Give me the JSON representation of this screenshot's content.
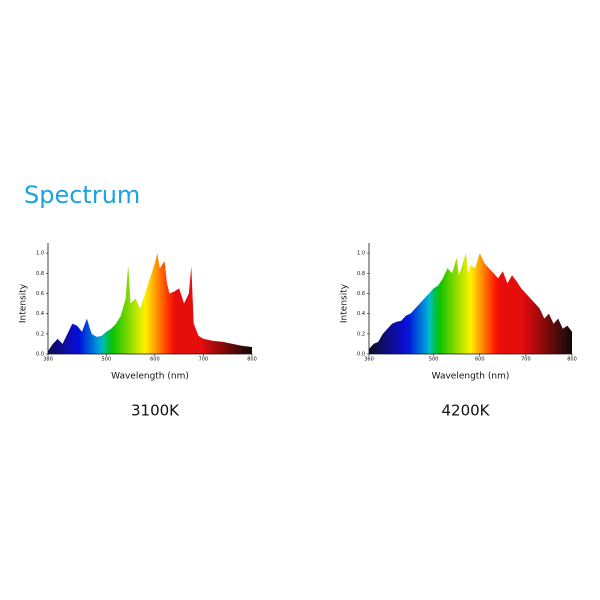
{
  "header": {
    "title": "Spectrum"
  },
  "chart_data": [
    {
      "type": "area",
      "ylabel": "Intensity",
      "xlabel": "Wavelength (nm)",
      "caption": "3100K",
      "xlim": [
        380,
        800
      ],
      "xticks": [
        380,
        500,
        600,
        700,
        800
      ],
      "ylim": [
        0,
        1.1
      ],
      "yticks": [
        {
          "value": 0,
          "label": "0.0"
        },
        0.2,
        0.4,
        0.6,
        0.8,
        {
          "value": 1,
          "label": "1.0"
        }
      ],
      "x": [
        380,
        390,
        400,
        410,
        420,
        430,
        440,
        450,
        460,
        470,
        480,
        490,
        500,
        510,
        520,
        530,
        540,
        545,
        550,
        560,
        570,
        580,
        590,
        600,
        605,
        610,
        620,
        625,
        630,
        640,
        650,
        660,
        670,
        675,
        680,
        690,
        700,
        720,
        740,
        760,
        780,
        800
      ],
      "values": [
        0.03,
        0.1,
        0.15,
        0.1,
        0.2,
        0.3,
        0.28,
        0.22,
        0.35,
        0.2,
        0.17,
        0.18,
        0.22,
        0.25,
        0.3,
        0.38,
        0.55,
        0.88,
        0.5,
        0.55,
        0.45,
        0.6,
        0.75,
        0.9,
        1.0,
        0.85,
        0.92,
        0.7,
        0.6,
        0.62,
        0.65,
        0.5,
        0.6,
        0.87,
        0.3,
        0.18,
        0.15,
        0.13,
        0.12,
        0.1,
        0.08,
        0.07
      ]
    },
    {
      "type": "area",
      "ylabel": "Intensity",
      "xlabel": "Wavelength (nm)",
      "caption": "4200K",
      "xlim": [
        360,
        800
      ],
      "xticks": [
        360,
        500,
        600,
        700,
        800
      ],
      "ylim": [
        0,
        1.1
      ],
      "yticks": [
        {
          "value": 0,
          "label": "0.0"
        },
        0.2,
        0.4,
        0.6,
        0.8,
        {
          "value": 1,
          "label": "1.0"
        }
      ],
      "x": [
        360,
        370,
        380,
        390,
        400,
        410,
        420,
        430,
        440,
        450,
        460,
        470,
        480,
        490,
        500,
        510,
        520,
        530,
        540,
        550,
        555,
        560,
        570,
        575,
        580,
        590,
        600,
        610,
        620,
        630,
        640,
        650,
        660,
        670,
        680,
        690,
        700,
        710,
        720,
        730,
        740,
        750,
        760,
        770,
        780,
        790,
        800
      ],
      "values": [
        0.05,
        0.1,
        0.12,
        0.2,
        0.25,
        0.3,
        0.32,
        0.33,
        0.38,
        0.4,
        0.45,
        0.5,
        0.55,
        0.6,
        0.65,
        0.68,
        0.75,
        0.85,
        0.8,
        0.95,
        0.78,
        0.85,
        1.0,
        0.8,
        0.88,
        0.85,
        1.0,
        0.9,
        0.85,
        0.8,
        0.75,
        0.82,
        0.7,
        0.78,
        0.72,
        0.65,
        0.6,
        0.55,
        0.5,
        0.45,
        0.35,
        0.4,
        0.3,
        0.35,
        0.25,
        0.28,
        0.22
      ]
    }
  ]
}
